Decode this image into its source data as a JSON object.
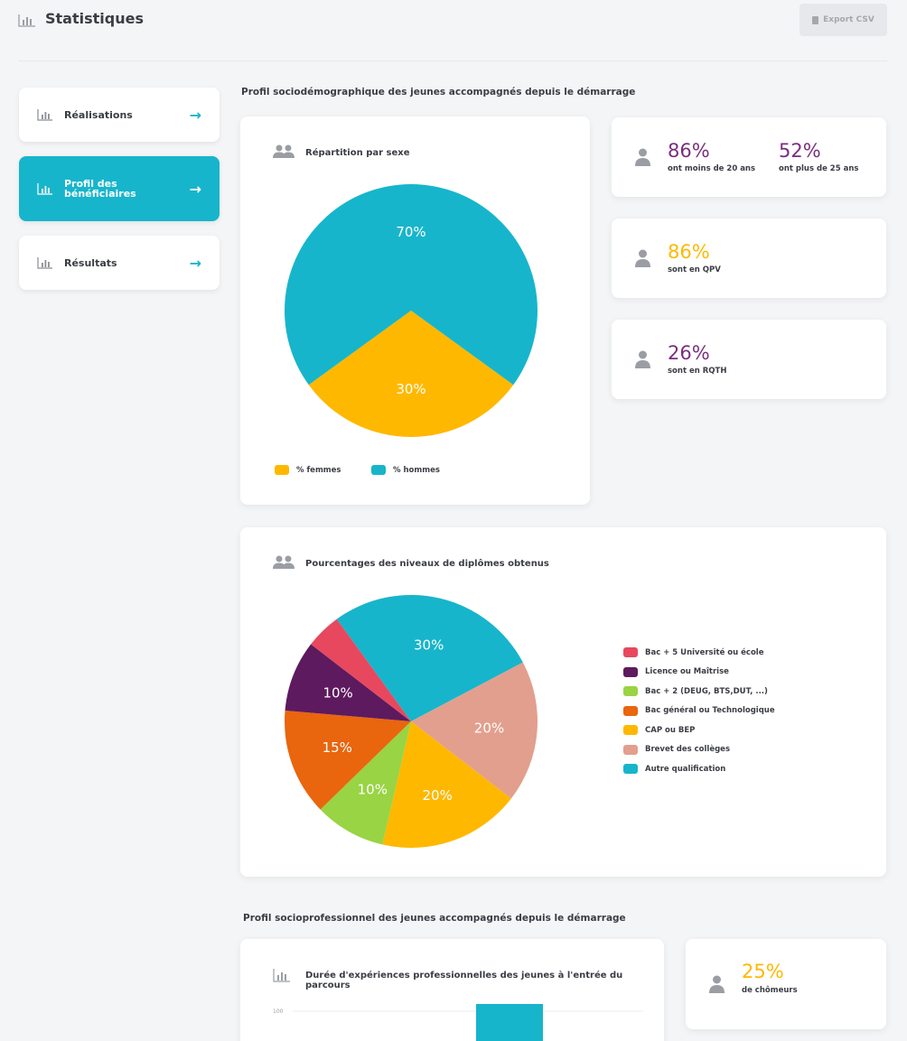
{
  "header": {
    "title": "Statistiques",
    "export_label": "Export CSV"
  },
  "sidebar": {
    "items": [
      {
        "label": "Réalisations"
      },
      {
        "label_line1": "Profil des",
        "label_line2": "bénéficiaires"
      },
      {
        "label": "Résultats"
      }
    ]
  },
  "section1": {
    "title": "Profil sociodémographique des jeunes accompagnés depuis le démarrage"
  },
  "sex_chart": {
    "title": "Répartition par sexe",
    "legend": [
      {
        "label": "% femmes",
        "color": "#ffb800"
      },
      {
        "label": "% hommes",
        "color": "#17b5cb"
      }
    ],
    "chart_data": {
      "type": "pie",
      "categories": [
        "% femmes",
        "% hommes"
      ],
      "values": [
        30,
        70
      ],
      "labels": [
        "30%",
        "70%"
      ],
      "colors": [
        "#ffb800",
        "#17b5cb"
      ]
    }
  },
  "stats": {
    "age": {
      "value1": "86%",
      "label1": "ont moins de 20 ans",
      "value2": "52%",
      "label2": "ont plus de 25 ans",
      "color": "#7b2d7e"
    },
    "qpv": {
      "value": "86%",
      "label": "sont en QPV",
      "color": "#ffb800"
    },
    "rqth": {
      "value": "26%",
      "label": "sont en RQTH",
      "color": "#7b2d7e"
    },
    "chomeurs": {
      "value": "25%",
      "label": "de chômeurs",
      "color": "#ffb800"
    }
  },
  "diploma_chart": {
    "title": "Pourcentages des niveaux de diplômes obtenus",
    "legend": [
      {
        "label": "Bac + 5 Université ou école",
        "color": "#e8485e"
      },
      {
        "label": "Licence ou Maîtrise",
        "color": "#5e1a5e"
      },
      {
        "label": "Bac + 2 (DEUG, BTS,DUT, ...)",
        "color": "#98d444"
      },
      {
        "label": "Bac général ou Technologique",
        "color": "#e9650e"
      },
      {
        "label": "CAP ou BEP",
        "color": "#ffb800"
      },
      {
        "label": "Brevet des collèges",
        "color": "#e29f8e"
      },
      {
        "label": "Autre qualification",
        "color": "#17b5cb"
      }
    ],
    "chart_data": {
      "type": "pie",
      "categories": [
        "Autre qualification",
        "Brevet des collèges",
        "CAP ou BEP",
        "Bac + 2 (DEUG, BTS,DUT, ...)",
        "Bac général ou Technologique",
        "Licence ou Maîtrise",
        "Bac + 5 Université ou école"
      ],
      "values": [
        30,
        20,
        20,
        10,
        15,
        10,
        5
      ],
      "labels": [
        "30%",
        "20%",
        "20%",
        "10%",
        "15%",
        "10%",
        ""
      ],
      "colors": [
        "#17b5cb",
        "#e29f8e",
        "#ffb800",
        "#98d444",
        "#e9650e",
        "#5e1a5e",
        "#e8485e"
      ]
    }
  },
  "section2": {
    "title": "Profil socioprofessionnel des jeunes accompagnés depuis le démarrage"
  },
  "experience_chart": {
    "title": "Durée d'expériences professionnelles des jeunes à l'entrée du parcours",
    "chart_data": {
      "type": "bar",
      "yticks": [
        "100"
      ],
      "ylim": [
        0,
        100
      ],
      "values": [
        100
      ],
      "color": "#17b5cb"
    }
  }
}
